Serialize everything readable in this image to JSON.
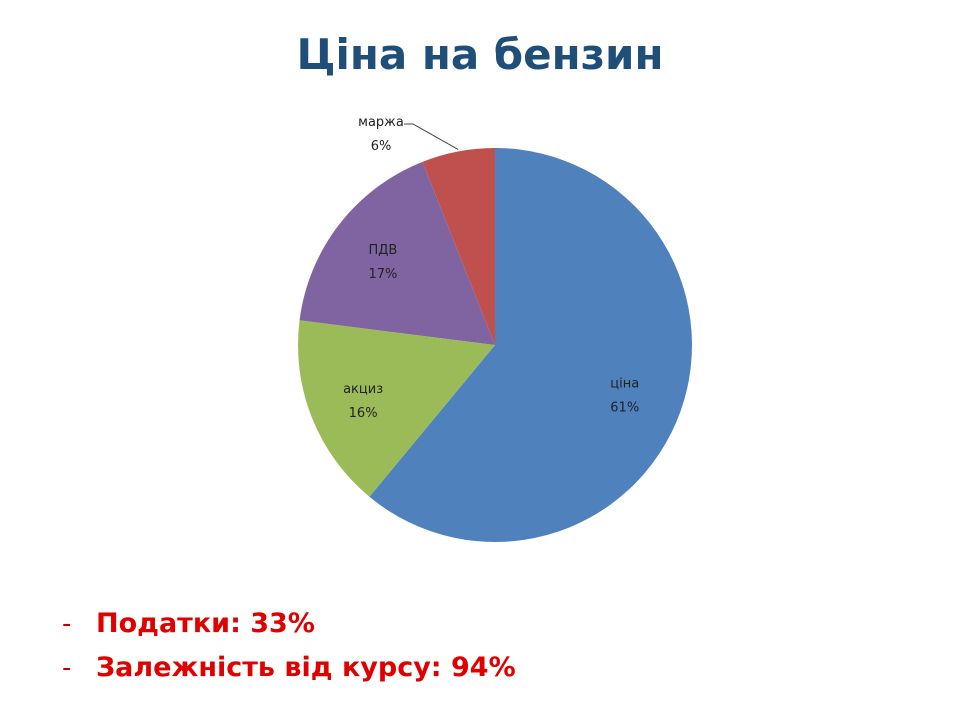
{
  "title": "Ціна на бензин",
  "chart_data": {
    "type": "pie",
    "slices": [
      {
        "name": "ціна",
        "value": 61,
        "label": "61%",
        "color": "#4f81bd"
      },
      {
        "name": "акциз",
        "value": 16,
        "label": "16%",
        "color": "#9bbb59"
      },
      {
        "name": "ПДВ",
        "value": 17,
        "label": "17%",
        "color": "#8064a2"
      },
      {
        "name": "маржа",
        "value": 6,
        "label": "6%",
        "color": "#c0504d"
      }
    ]
  },
  "bullets": [
    {
      "dash": "-",
      "text": "Податки: 33%"
    },
    {
      "dash": "-",
      "text": "Залежність від курсу: 94%"
    }
  ]
}
